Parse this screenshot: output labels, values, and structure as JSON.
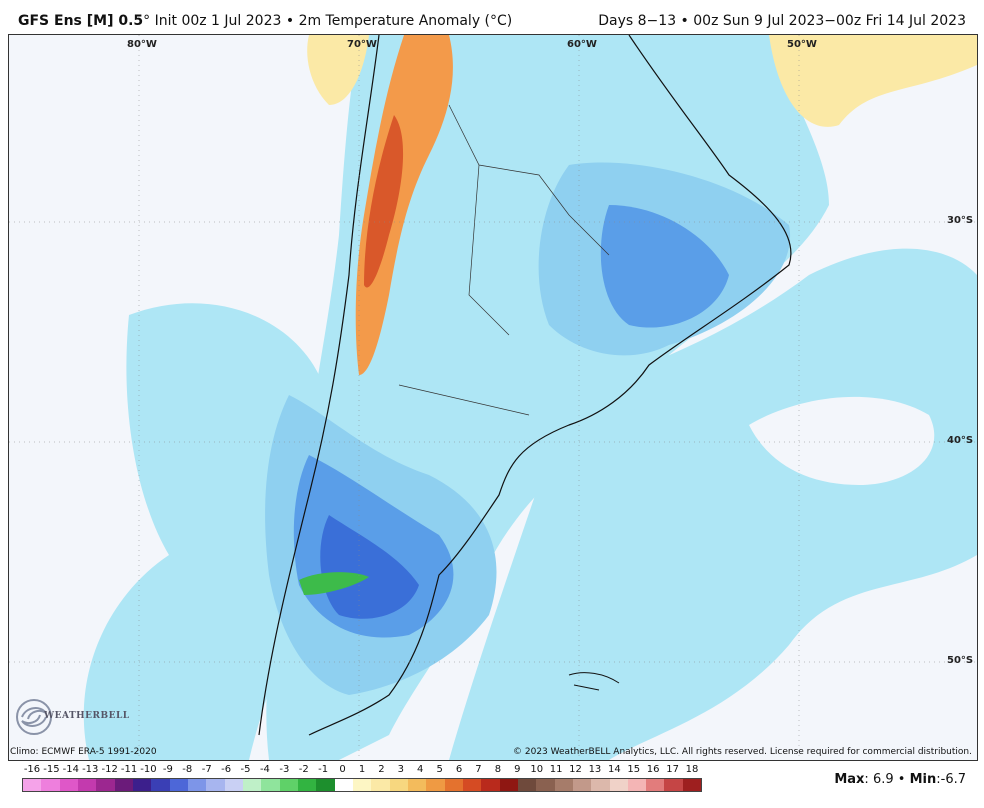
{
  "header": {
    "model": "GFS Ens [M] 0.5",
    "degree": "°",
    "init": "Init 00z 1 Jul 2023",
    "bullet": "•",
    "field": "2m Temperature Anomaly (°C)",
    "valid": "Days 8−13 • 00z Sun 9 Jul 2023−00z Fri 14 Jul 2023"
  },
  "map": {
    "lon_labels": [
      "80°W",
      "70°W",
      "60°W",
      "50°W"
    ],
    "lat_labels": [
      "30°S",
      "40°S",
      "50°S"
    ],
    "colors": {
      "ocean_neutral": "#f3f6fb",
      "light_cyan": "#aee6f5",
      "light_blue": "#8fd0f0",
      "blue": "#5a9ee8",
      "deep_blue": "#3a6fd8",
      "warm_yellow": "#fbe9a6",
      "orange": "#f39a4a",
      "red_orange": "#d9582a",
      "green": "#3dbb4a"
    }
  },
  "footer": {
    "climo": "Climo: ECMWF ERA-5 1991-2020",
    "copyright": "© 2023 WeatherBELL Analytics, LLC. All rights reserved. License required for commercial distribution.",
    "logo_text": "WEATHERBELL",
    "logo_icon": "swirl-logo-icon",
    "max_label": "Max",
    "max_value": "6.9",
    "separator": "•",
    "min_label": "Min",
    "min_value": "-6.7"
  },
  "colorbar": {
    "labels": [
      "-16",
      "-15",
      "-14",
      "-13",
      "-12",
      "-11",
      "-10",
      "-9",
      "-8",
      "-7",
      "-6",
      "-5",
      "-4",
      "-3",
      "-2",
      "-1",
      "0",
      "1",
      "2",
      "3",
      "4",
      "5",
      "6",
      "7",
      "8",
      "9",
      "10",
      "11",
      "12",
      "13",
      "14",
      "15",
      "16",
      "17",
      "18"
    ],
    "colors": [
      "#f5a3e9",
      "#ee7fdd",
      "#df57c8",
      "#c33aae",
      "#9c2790",
      "#6b1b7a",
      "#3c1f8c",
      "#3a3fb5",
      "#4d67d8",
      "#7d95e8",
      "#a7b5ef",
      "#c9d0f4",
      "#bff0c8",
      "#8fe49c",
      "#5fd168",
      "#32b441",
      "#1d8f2d",
      "#ffffff",
      "#fdf6c4",
      "#fbe9a6",
      "#f7d77f",
      "#f3bb5c",
      "#ef9a43",
      "#e4722e",
      "#d54b23",
      "#b92a1c",
      "#8f1712",
      "#6f4a3c",
      "#8a6150",
      "#a67c6a",
      "#c2998a",
      "#dcb8ab",
      "#f0d2c8",
      "#f4b5b5",
      "#e27c7c",
      "#c54545",
      "#9e1f1f"
    ]
  }
}
